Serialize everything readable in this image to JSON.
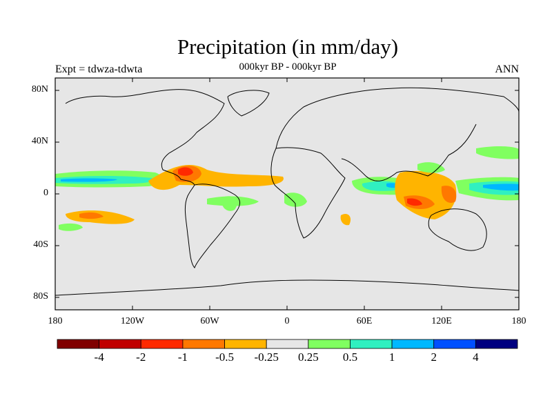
{
  "title": "Precipitation (in mm/day)",
  "subtitle": "000kyr BP - 000kyr BP",
  "left_label": "Expt = tdwza-tdwta",
  "right_label": "ANN",
  "y_ticks": [
    "80N",
    "40N",
    "0",
    "40S",
    "80S"
  ],
  "x_ticks": [
    "180",
    "120W",
    "60W",
    "0",
    "60E",
    "120E",
    "180"
  ],
  "colorbar": {
    "colors": [
      "#800000",
      "#c00000",
      "#ff2a00",
      "#ff7800",
      "#ffb400",
      "#e6e6e6",
      "#80ff60",
      "#30f0c0",
      "#00b8ff",
      "#0050ff",
      "#000080"
    ],
    "labels": [
      "-4",
      "-2",
      "-1",
      "-0.5",
      "-0.25",
      "0.25",
      "0.5",
      "1",
      "2",
      "4"
    ]
  }
}
